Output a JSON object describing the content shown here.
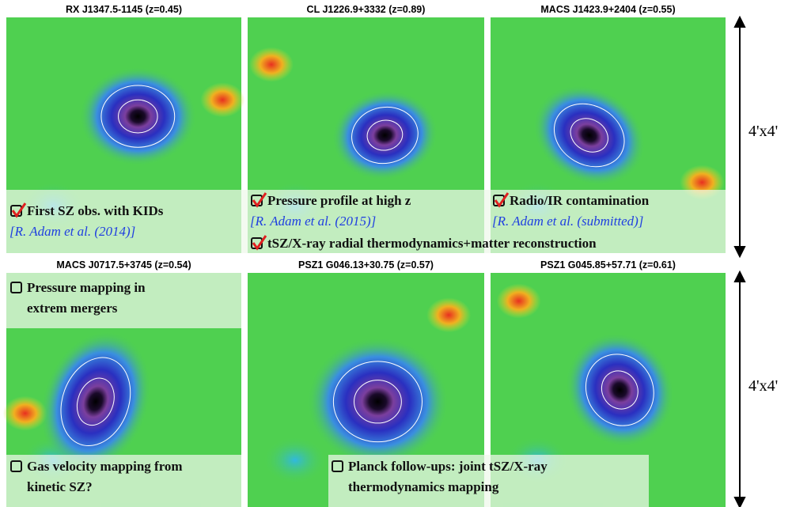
{
  "panels": [
    {
      "title": "RX J1347.5-1145 (z=0.45)"
    },
    {
      "title": "CL J1226.9+3332 (z=0.89)"
    },
    {
      "title": "MACS J1423.9+2404 (z=0.55)"
    },
    {
      "title": "MACS J0717.5+3745 (z=0.54)"
    },
    {
      "title": "PSZ1 G046.13+30.75 (z=0.57)"
    },
    {
      "title": "PSZ1 G045.85+57.71 (z=0.61)"
    }
  ],
  "annotations": [
    {
      "checked": true,
      "lines": [
        "First SZ obs. with KIDs"
      ],
      "reference": "[R. Adam et al. (2014)]"
    },
    {
      "checked": true,
      "lines": [
        "Pressure profile at high z"
      ],
      "reference": "[R. Adam et al. (2015)]"
    },
    {
      "checked": true,
      "lines": [
        "Radio/IR contamination"
      ],
      "reference": "[R. Adam et al. (submitted)]"
    },
    {
      "checked": true,
      "lines": [
        "tSZ/X-ray radial thermodynamics+matter reconstruction"
      ]
    },
    {
      "checked": false,
      "lines": [
        "Pressure mapping in",
        "extrem mergers"
      ]
    },
    {
      "checked": false,
      "lines": [
        "Gas velocity mapping from",
        "kinetic SZ?"
      ]
    },
    {
      "checked": false,
      "lines": [
        "Planck follow-ups: joint tSZ/X-ray",
        "thermodynamics mapping"
      ]
    }
  ],
  "scale_labels": [
    "4'x4'",
    "4'x4'"
  ]
}
